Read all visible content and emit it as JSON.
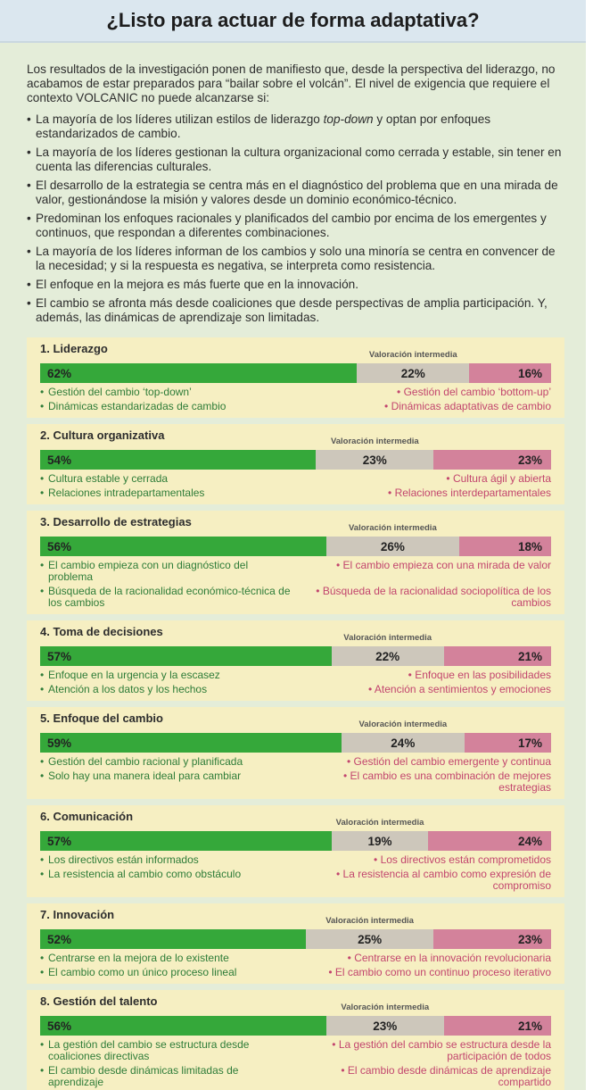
{
  "title": "¿Listo para actuar de forma adaptativa?",
  "intro": "Los resultados de la investigación ponen de manifiesto que, desde la perspectiva del liderazgo, no acabamos de estar preparados para “bailar sobre el volcán”. El nivel de exigencia que requiere el contexto VOLCANIC no puede alcanzarse si:",
  "bullets": [
    [
      "La mayoría de los líderes utilizan estilos de liderazgo ",
      "top-down",
      " y optan por enfoques estandarizados de cambio."
    ],
    "La mayoría de los líderes gestionan la cultura organizacional como cerrada y estable, sin tener en cuenta las diferencias culturales.",
    "El desarrollo de la estrategia se centra más en el diagnóstico del problema que en una mirada de valor, gestionándose la misión y valores desde un dominio económico-técnico.",
    "Predominan los enfoques racionales y planificados del cambio por encima de los emergentes y continuos, que respondan a diferentes combinaciones.",
    "La mayoría de los líderes informan de los cambios y solo una minoría se centra en convencer de la necesidad; y si la respuesta es negativa, se interpreta como resistencia.",
    "El enfoque en la mejora es más fuerte que en la innovación.",
    "El cambio se afronta más desde coaliciones que desde perspectivas de amplia participación. Y, además, las dinámicas de aprendizaje son limitadas."
  ],
  "chart_data": [
    {
      "type": "bar",
      "title": "1. Liderazgo",
      "middle_label": "Valoración intermedia",
      "xlim": [
        0,
        100
      ],
      "series": [
        {
          "color": "#35a83a",
          "values": [
            62
          ],
          "value_labels": [
            "62%"
          ]
        },
        {
          "color": "#cdc7bb",
          "values": [
            22
          ],
          "value_labels": [
            "22%"
          ]
        },
        {
          "color": "#d3829b",
          "values": [
            16
          ],
          "value_labels": [
            "16%"
          ]
        }
      ],
      "left_notes": [
        "Gestión del cambio ‘top-down’",
        "Dinámicas estandarizadas de cambio"
      ],
      "right_notes": [
        "Gestión del cambio ‘bottom-up’",
        "Dinámicas adaptativas de cambio"
      ]
    },
    {
      "type": "bar",
      "title": "2. Cultura organizativa",
      "middle_label": "Valoración intermedia",
      "xlim": [
        0,
        100
      ],
      "series": [
        {
          "color": "#35a83a",
          "values": [
            54
          ],
          "value_labels": [
            "54%"
          ]
        },
        {
          "color": "#cdc7bb",
          "values": [
            23
          ],
          "value_labels": [
            "23%"
          ]
        },
        {
          "color": "#d3829b",
          "values": [
            23
          ],
          "value_labels": [
            "23%"
          ]
        }
      ],
      "left_notes": [
        "Cultura estable y cerrada",
        "Relaciones intradepartamentales"
      ],
      "right_notes": [
        "Cultura ágil y abierta",
        "Relaciones interdepartamentales"
      ]
    },
    {
      "type": "bar",
      "title": "3. Desarrollo de estrategias",
      "middle_label": "Valoración intermedia",
      "xlim": [
        0,
        100
      ],
      "series": [
        {
          "color": "#35a83a",
          "values": [
            56
          ],
          "value_labels": [
            "56%"
          ]
        },
        {
          "color": "#cdc7bb",
          "values": [
            26
          ],
          "value_labels": [
            "26%"
          ]
        },
        {
          "color": "#d3829b",
          "values": [
            18
          ],
          "value_labels": [
            "18%"
          ]
        }
      ],
      "left_notes": [
        "El cambio empieza con un diagnóstico del problema",
        "Búsqueda de la racionalidad económico-técnica de los cambios"
      ],
      "right_notes": [
        "El cambio empieza con una mirada de valor",
        "Búsqueda de la racionalidad sociopolítica de los cambios"
      ]
    },
    {
      "type": "bar",
      "title": "4. Toma de decisiones",
      "middle_label": "Valoración intermedia",
      "xlim": [
        0,
        100
      ],
      "series": [
        {
          "color": "#35a83a",
          "values": [
            57
          ],
          "value_labels": [
            "57%"
          ]
        },
        {
          "color": "#cdc7bb",
          "values": [
            22
          ],
          "value_labels": [
            "22%"
          ]
        },
        {
          "color": "#d3829b",
          "values": [
            21
          ],
          "value_labels": [
            "21%"
          ]
        }
      ],
      "left_notes": [
        "Enfoque en la urgencia y la escasez",
        "Atención a los datos y los hechos"
      ],
      "right_notes": [
        "Enfoque en las posibilidades",
        "Atención a sentimientos y emociones"
      ]
    },
    {
      "type": "bar",
      "title": "5. Enfoque del cambio",
      "middle_label": "Valoración intermedia",
      "xlim": [
        0,
        100
      ],
      "series": [
        {
          "color": "#35a83a",
          "values": [
            59
          ],
          "value_labels": [
            "59%"
          ]
        },
        {
          "color": "#cdc7bb",
          "values": [
            24
          ],
          "value_labels": [
            "24%"
          ]
        },
        {
          "color": "#d3829b",
          "values": [
            17
          ],
          "value_labels": [
            "17%"
          ]
        }
      ],
      "left_notes": [
        "Gestión del cambio racional y planificada",
        "Solo hay una manera ideal para cambiar"
      ],
      "right_notes": [
        "Gestión del cambio emergente y continua",
        "El cambio es una combinación de mejores estrategias"
      ]
    },
    {
      "type": "bar",
      "title": "6. Comunicación",
      "middle_label": "Valoración intermedia",
      "xlim": [
        0,
        100
      ],
      "series": [
        {
          "color": "#35a83a",
          "values": [
            57
          ],
          "value_labels": [
            "57%"
          ]
        },
        {
          "color": "#cdc7bb",
          "values": [
            19
          ],
          "value_labels": [
            "19%"
          ]
        },
        {
          "color": "#d3829b",
          "values": [
            24
          ],
          "value_labels": [
            "24%"
          ]
        }
      ],
      "left_notes": [
        "Los directivos están informados",
        "La resistencia al cambio como obstáculo"
      ],
      "right_notes": [
        "Los directivos están comprometidos",
        "La resistencia al cambio como expresión de compromiso"
      ]
    },
    {
      "type": "bar",
      "title": "7. Innovación",
      "middle_label": "Valoración intermedia",
      "xlim": [
        0,
        100
      ],
      "series": [
        {
          "color": "#35a83a",
          "values": [
            52
          ],
          "value_labels": [
            "52%"
          ]
        },
        {
          "color": "#cdc7bb",
          "values": [
            25
          ],
          "value_labels": [
            "25%"
          ]
        },
        {
          "color": "#d3829b",
          "values": [
            23
          ],
          "value_labels": [
            "23%"
          ]
        }
      ],
      "left_notes": [
        "Centrarse en la mejora de lo existente",
        "El cambio como un único proceso lineal"
      ],
      "right_notes": [
        "Centrarse en la innovación revolucionaria",
        "El cambio como un continuo proceso iterativo"
      ]
    },
    {
      "type": "bar",
      "title": "8. Gestión del talento",
      "middle_label": "Valoración intermedia",
      "xlim": [
        0,
        100
      ],
      "series": [
        {
          "color": "#35a83a",
          "values": [
            56
          ],
          "value_labels": [
            "56%"
          ]
        },
        {
          "color": "#cdc7bb",
          "values": [
            23
          ],
          "value_labels": [
            "23%"
          ]
        },
        {
          "color": "#d3829b",
          "values": [
            21
          ],
          "value_labels": [
            "21%"
          ]
        }
      ],
      "left_notes": [
        "La gestión del cambio se estructura desde coaliciones directivas",
        "El cambio desde dinámicas limitadas de aprendizaje"
      ],
      "right_notes": [
        "La gestión del cambio se estructura desde la participación de todos",
        "El cambio desde dinámicas de aprendizaje compartido"
      ]
    }
  ]
}
